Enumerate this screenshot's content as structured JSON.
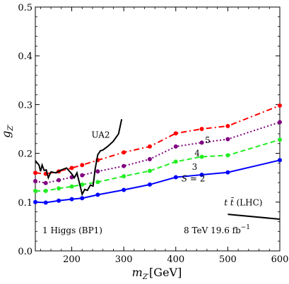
{
  "chart_data": {
    "type": "line",
    "xlabel": "m",
    "xlabel_sub": "Z′",
    "xlabel_unit": "[GeV]",
    "ylabel": "g",
    "ylabel_sub": "Z′",
    "xlim": [
      130,
      600
    ],
    "ylim": [
      0,
      0.5
    ],
    "x_ticks": [
      200,
      300,
      400,
      500,
      600
    ],
    "x_tick_labels": [
      "200",
      "300",
      "400",
      "500",
      "600"
    ],
    "y_ticks": [
      0.0,
      0.1,
      0.2,
      0.3,
      0.4,
      0.5
    ],
    "y_tick_labels": [
      "0.0",
      "0.1",
      "0.2",
      "0.3",
      "0.4",
      "0.5"
    ],
    "grid": false,
    "series": [
      {
        "label": "S = 2",
        "color": "#0000ff",
        "dash": "solid",
        "x": [
          130,
          150,
          175,
          200,
          220,
          250,
          300,
          350,
          400,
          450,
          500,
          600
        ],
        "y": [
          0.1,
          0.099,
          0.103,
          0.106,
          0.108,
          0.115,
          0.125,
          0.136,
          0.151,
          0.156,
          0.161,
          0.186
        ]
      },
      {
        "label": "3",
        "color": "#22ee22",
        "dash": "dashed",
        "x": [
          130,
          150,
          175,
          200,
          220,
          250,
          300,
          350,
          400,
          450,
          500,
          600
        ],
        "y": [
          0.123,
          0.123,
          0.128,
          0.132,
          0.136,
          0.141,
          0.153,
          0.164,
          0.183,
          0.193,
          0.196,
          0.228
        ]
      },
      {
        "label": "4",
        "color": "#800080",
        "dash": "dotted",
        "x": [
          130,
          150,
          175,
          200,
          220,
          250,
          300,
          350,
          400,
          450,
          500,
          600
        ],
        "y": [
          0.143,
          0.139,
          0.145,
          0.151,
          0.155,
          0.163,
          0.174,
          0.188,
          0.214,
          0.222,
          0.229,
          0.264
        ]
      },
      {
        "label": "5",
        "color": "#ff0000",
        "dash": "dash-dot",
        "x": [
          130,
          150,
          175,
          200,
          220,
          250,
          300,
          350,
          400,
          450,
          500,
          600
        ],
        "y": [
          0.16,
          0.158,
          0.163,
          0.17,
          0.176,
          0.186,
          0.202,
          0.214,
          0.241,
          0.25,
          0.256,
          0.298
        ]
      }
    ],
    "ua2_curve": {
      "label": "UA2",
      "color": "#000000",
      "x": [
        130,
        137,
        140,
        143,
        147,
        151,
        155,
        160,
        170,
        180,
        190,
        200,
        205,
        210,
        215,
        220,
        225,
        230,
        236,
        241,
        245,
        250,
        255,
        260,
        270,
        280,
        290,
        293,
        296
      ],
      "y": [
        0.185,
        0.176,
        0.163,
        0.176,
        0.165,
        0.166,
        0.15,
        0.162,
        0.16,
        0.166,
        0.17,
        0.158,
        0.15,
        0.16,
        0.138,
        0.116,
        0.126,
        0.124,
        0.135,
        0.133,
        0.168,
        0.197,
        0.205,
        0.207,
        0.215,
        0.225,
        0.24,
        0.255,
        0.27
      ]
    },
    "ttbar_curve": {
      "label_t": "t",
      "label_tbar": "t̄",
      "label_rest": "(LHC)",
      "color": "#000000",
      "x": [
        500,
        600
      ],
      "y": [
        0.075,
        0.065
      ]
    },
    "annotations": {
      "higgs": "1 Higgs (BP1)",
      "energy": "8 TeV",
      "lumi": "19.6 fb",
      "lumi_sup": "−1"
    }
  }
}
